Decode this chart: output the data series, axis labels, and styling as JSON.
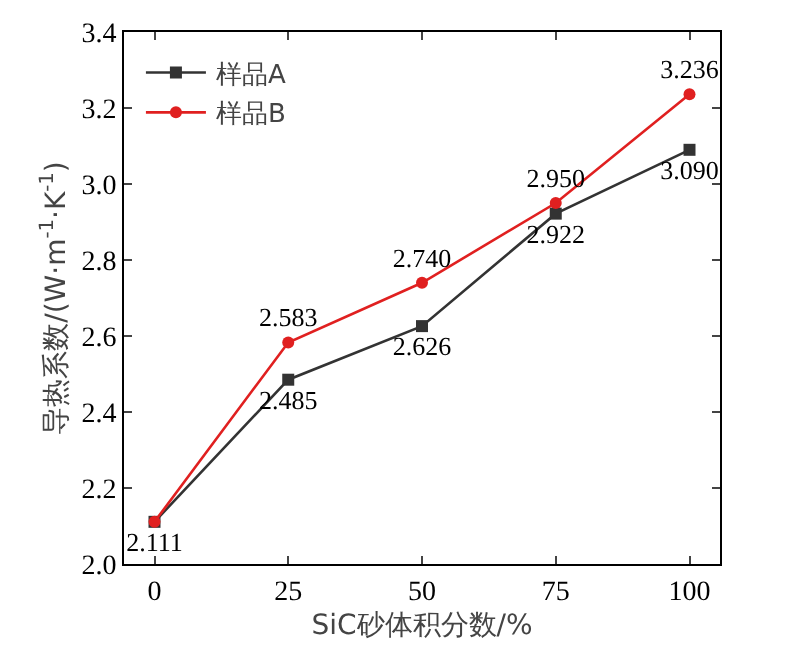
{
  "chart_data": {
    "type": "line",
    "xlabel": "SiC砂体积分数/%",
    "ylabel": "导热系数/(W·m$^{-1}$·K$^{-1}$)",
    "x": [
      0,
      25,
      50,
      75,
      100
    ],
    "series": [
      {
        "name": "样品A",
        "color": "#333333",
        "marker": "square",
        "values": [
          2.111,
          2.485,
          2.626,
          2.922,
          3.09
        ],
        "value_labels": [
          "2.111",
          "2.485",
          "2.626",
          "2.922",
          "3.090"
        ]
      },
      {
        "name": "样品B",
        "color": "#e02020",
        "marker": "circle",
        "values": [
          2.111,
          2.583,
          2.74,
          2.95,
          3.236
        ],
        "value_labels": [
          null,
          "2.583",
          "2.740",
          "2.950",
          "3.236"
        ]
      }
    ],
    "xlim": [
      -5.7,
      105.7
    ],
    "xticks": [
      0,
      25,
      50,
      75,
      100
    ],
    "ylim": [
      2.0,
      3.4
    ],
    "yticks": [
      {
        "value": 2.0,
        "label": "2.0"
      },
      {
        "value": 2.2,
        "label": "2.2"
      },
      {
        "value": 2.4,
        "label": "2.4"
      },
      {
        "value": 2.6,
        "label": "2.6"
      },
      {
        "value": 2.8,
        "label": "2.8"
      },
      {
        "value": 3.0,
        "label": "3.0"
      },
      {
        "value": 3.2,
        "label": "3.2"
      },
      {
        "value": 3.4,
        "label": "3.4"
      }
    ],
    "grid": false,
    "legend": "top left",
    "line_style": "solid"
  }
}
